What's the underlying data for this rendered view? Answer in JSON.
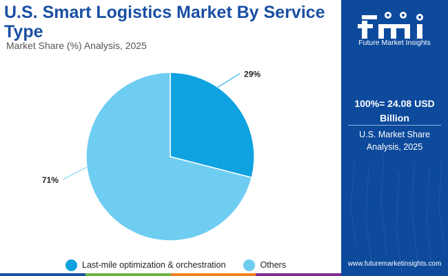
{
  "header": {
    "title": "U.S. Smart Logistics Market By Service Type",
    "subtitle": "Market Share (%) Analysis, 2025"
  },
  "chart_data": {
    "type": "pie",
    "slices": [
      {
        "label": "Last-mile optimization & orchestration",
        "value": 29,
        "display": "29%",
        "color": "#0ea2e0"
      },
      {
        "label": "Others",
        "value": 71,
        "display": "71%",
        "color": "#6fcdf2"
      }
    ],
    "legend_position": "bottom"
  },
  "side_panel": {
    "brand_name": "Future Market Insights",
    "total": "100%= 24.08 USD Billion",
    "note": "U.S. Market Share Analysis, 2025",
    "url": "www.futuremarketinsights.com",
    "background_color": "#0d4a9c"
  },
  "bottom_bar_colors": [
    "#1a4fa3",
    "#6db33f",
    "#f07f1e",
    "#7b2d8e"
  ]
}
